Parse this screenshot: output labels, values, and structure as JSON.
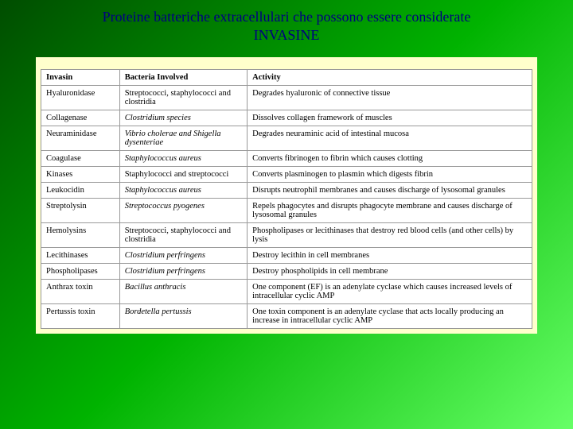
{
  "title": {
    "line1": "Proteine batteriche extracellulari che possono essere considerate",
    "line2": "INVASINE"
  },
  "table": {
    "headers": {
      "invasin": "Invasin",
      "bacteria": "Bacteria Involved",
      "activity": "Activity"
    },
    "rows": [
      {
        "invasin": "Hyaluronidase",
        "bacteria": "Streptococci, staphylococci and clostridia",
        "bacteria_italic": false,
        "activity": "Degrades hyaluronic of connective tissue"
      },
      {
        "invasin": "Collagenase",
        "bacteria": "Clostridium species",
        "bacteria_italic": true,
        "activity": "Dissolves collagen framework of muscles"
      },
      {
        "invasin": "Neuraminidase",
        "bacteria": "Vibrio cholerae and Shigella dysenteriae",
        "bacteria_italic": true,
        "activity": "Degrades neuraminic acid of intestinal mucosa"
      },
      {
        "invasin": "Coagulase",
        "bacteria": "Staphylococcus aureus",
        "bacteria_italic": true,
        "activity": "Converts fibrinogen to fibrin which causes clotting"
      },
      {
        "invasin": "Kinases",
        "bacteria": "Staphylococci and streptococci",
        "bacteria_italic": false,
        "activity": "Converts plasminogen to plasmin which digests fibrin"
      },
      {
        "invasin": "Leukocidin",
        "bacteria": "Staphylococcus aureus",
        "bacteria_italic": true,
        "activity": "Disrupts neutrophil membranes and causes discharge of lysosomal granules"
      },
      {
        "invasin": "Streptolysin",
        "bacteria": "Streptococcus pyogenes",
        "bacteria_italic": true,
        "activity": "Repels phagocytes and disrupts phagocyte membrane and causes discharge of lysosomal granules"
      },
      {
        "invasin": "Hemolysins",
        "bacteria": "Streptococci, staphylococci and clostridia",
        "bacteria_italic": false,
        "activity": "Phospholipases or lecithinases that destroy red blood cells (and other cells) by lysis"
      },
      {
        "invasin": "Lecithinases",
        "bacteria": "Clostridium perfringens",
        "bacteria_italic": true,
        "activity": "Destroy lecithin in cell membranes"
      },
      {
        "invasin": "Phospholipases",
        "bacteria": "Clostridium perfringens",
        "bacteria_italic": true,
        "activity": "Destroy phospholipids in cell membrane"
      },
      {
        "invasin": "Anthrax toxin",
        "bacteria": "Bacillus anthracis",
        "bacteria_italic": true,
        "activity": "One component (EF) is an adenylate cyclase which causes increased levels of intracellular cyclic AMP"
      },
      {
        "invasin": "Pertussis toxin",
        "bacteria": "Bordetella pertussis",
        "bacteria_italic": true,
        "activity": "One toxin component is an adenylate cyclase that acts locally producing an increase in intracellular cyclic AMP"
      }
    ]
  },
  "styling": {
    "background_gradient": [
      "#004d00",
      "#008000",
      "#00b300",
      "#66ff66"
    ],
    "title_color": "#000080",
    "table_outer_bg": "#ffffcc",
    "table_bg": "#ffffff",
    "border_color": "#999999",
    "title_fontsize": 18,
    "table_fontsize": 10.5
  }
}
